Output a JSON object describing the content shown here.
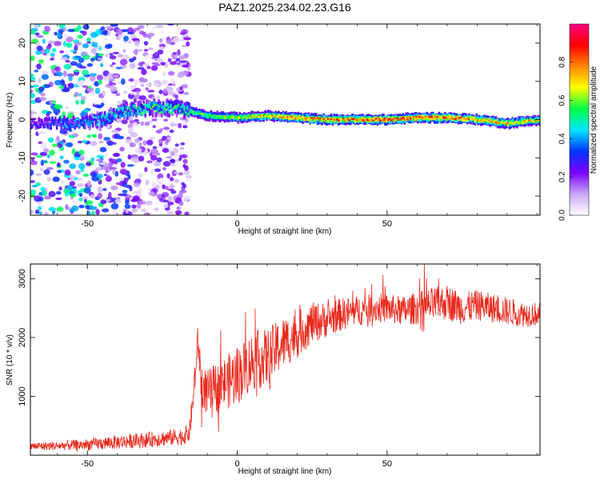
{
  "title": "PAZ1.2025.234.02.23.G16",
  "colors": {
    "snr_line": "#e8281c",
    "colormap": [
      "#ffffff",
      "#c9a8f5",
      "#7a00ff",
      "#0033ff",
      "#00e5ff",
      "#00ff44",
      "#ffff00",
      "#ff8800",
      "#ff0000",
      "#ff0080"
    ]
  },
  "chart_data": [
    {
      "type": "heatmap",
      "title": "PAZ1.2025.234.02.23.G16",
      "xlabel": "Height of straight line (km)",
      "ylabel": "Frequency (Hz)",
      "xlim": [
        -69,
        101
      ],
      "ylim": [
        -25,
        25
      ],
      "xticks": [
        -50,
        0,
        50
      ],
      "yticks": [
        -20,
        -10,
        0,
        10,
        20
      ],
      "colorbar": {
        "label": "Normalized spectral amplitude",
        "range": [
          0,
          1
        ],
        "ticks": [
          "0.0",
          "0.2",
          "0.4",
          "0.6",
          "0.8"
        ],
        "tick_values": [
          0,
          0.2,
          0.4,
          0.6,
          0.8
        ]
      },
      "ridge": {
        "x": [
          -69,
          -55,
          -45,
          -40,
          -30,
          -20,
          -10,
          0,
          10,
          20,
          30,
          40,
          50,
          60,
          70,
          80,
          90,
          101
        ],
        "freq": [
          -1,
          -1,
          0,
          2,
          3,
          3,
          1,
          0.5,
          1,
          0.5,
          0,
          0,
          0,
          0.5,
          0.5,
          0,
          -1,
          0
        ],
        "amplitude": [
          0.3,
          0.45,
          0.5,
          0.55,
          0.6,
          0.6,
          0.65,
          0.7,
          0.8,
          0.85,
          0.9,
          0.9,
          0.95,
          0.9,
          0.9,
          0.85,
          0.8,
          0.75
        ]
      },
      "noise_extent_x": [
        -69,
        -16
      ]
    },
    {
      "type": "line",
      "xlabel": "Height of straight line (km)",
      "ylabel": "SNR (10 * v/v)",
      "xlim": [
        -69,
        101
      ],
      "ylim": [
        0,
        3250
      ],
      "xticks": [
        -50,
        0,
        50
      ],
      "yticks": [
        1000,
        2000,
        3000
      ],
      "series": [
        {
          "x": [
            -69,
            -60,
            -50,
            -40,
            -30,
            -22,
            -18,
            -16,
            -15,
            -14,
            -13,
            -12,
            -10,
            -5,
            0,
            5,
            10,
            15,
            20,
            25,
            30,
            35,
            40,
            45,
            50,
            55,
            60,
            65,
            70,
            75,
            80,
            85,
            90,
            95,
            101
          ],
          "values": [
            150,
            160,
            180,
            220,
            260,
            300,
            320,
            380,
            800,
            1400,
            1950,
            1200,
            1050,
            1200,
            1350,
            1600,
            1650,
            1900,
            2050,
            2250,
            2300,
            2400,
            2450,
            2500,
            2500,
            2450,
            2500,
            2550,
            2600,
            2500,
            2550,
            2500,
            2450,
            2400,
            2400
          ],
          "noise_amplitude": [
            70,
            80,
            100,
            120,
            130,
            140,
            150,
            160,
            250,
            300,
            350,
            350,
            400,
            450,
            500,
            500,
            500,
            450,
            400,
            350,
            300,
            280,
            260,
            250,
            250,
            250,
            280,
            300,
            300,
            280,
            260,
            250,
            240,
            220,
            200
          ]
        }
      ]
    }
  ]
}
